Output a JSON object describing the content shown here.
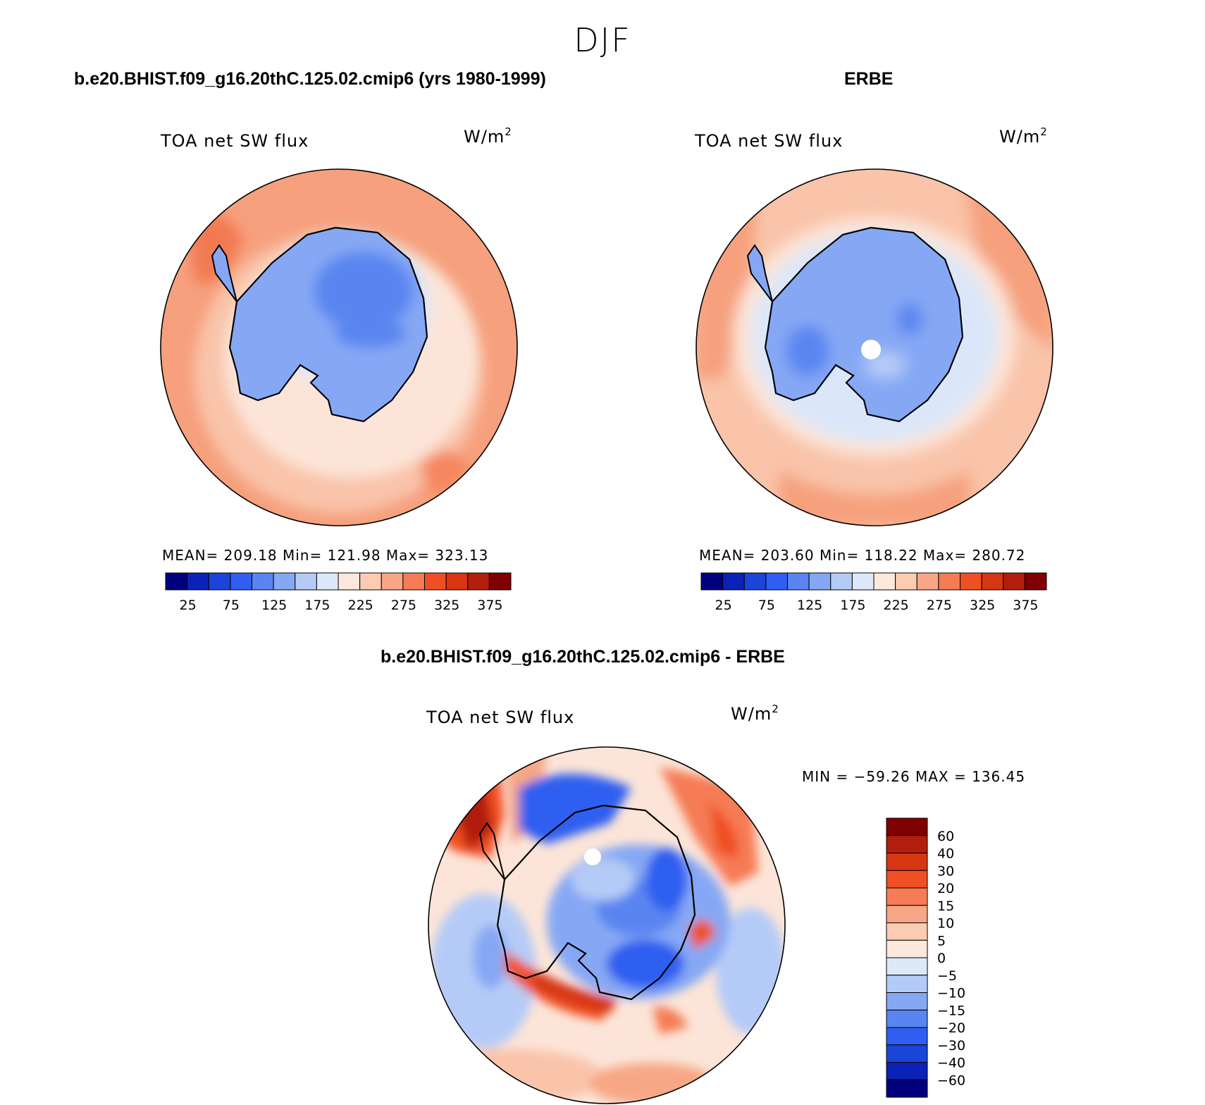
{
  "season": "DJF",
  "panels": [
    {
      "title": "b.e20.BHIST.f09_g16.20thC.125.02.cmip6 (yrs 1980-1999)",
      "variable": "TOA net SW flux",
      "unit": "W/m",
      "unit_power": "2",
      "stats": "MEAN= 209.18   Min= 121.98   Max= 323.13"
    },
    {
      "title": "ERBE",
      "variable": "TOA net SW flux",
      "unit": "W/m",
      "unit_power": "2",
      "stats": "MEAN= 203.60   Min= 118.22   Max= 280.72"
    }
  ],
  "difference": {
    "title": "b.e20.BHIST.f09_g16.20thC.125.02.cmip6 - ERBE",
    "variable": "TOA net SW flux",
    "unit": "W/m",
    "unit_power": "2",
    "minmax": "MIN = −59.26 MAX = 136.45"
  },
  "chart_data": [
    {
      "type": "heatmap",
      "projection": "south polar stereographic",
      "title": "b.e20.BHIST.f09_g16.20thC.125.02.cmip6 (yrs 1980-1999)",
      "variable": "TOA net SW flux",
      "unit": "W/m2",
      "mean": 209.18,
      "min": 121.98,
      "max": 323.13,
      "colorbar_ticks": [
        "25",
        "75",
        "125",
        "175",
        "225",
        "275",
        "325",
        "375"
      ],
      "colorbar_colors": [
        "#00007f",
        "#0a22b8",
        "#1a45d8",
        "#2f5ef0",
        "#5a85f0",
        "#86a8f4",
        "#b5cbf7",
        "#dde9f9",
        "#fce8dc",
        "#fbcbb2",
        "#f7a786",
        "#f57c55",
        "#f04f24",
        "#d63612",
        "#b21e0c",
        "#7f0000"
      ]
    },
    {
      "type": "heatmap",
      "projection": "south polar stereographic",
      "title": "ERBE",
      "variable": "TOA net SW flux",
      "unit": "W/m2",
      "mean": 203.6,
      "min": 118.22,
      "max": 280.72,
      "colorbar_ticks": [
        "25",
        "75",
        "125",
        "175",
        "225",
        "275",
        "325",
        "375"
      ],
      "colorbar_colors": [
        "#00007f",
        "#0a22b8",
        "#1a45d8",
        "#2f5ef0",
        "#5a85f0",
        "#86a8f4",
        "#b5cbf7",
        "#dde9f9",
        "#fce8dc",
        "#fbcbb2",
        "#f7a786",
        "#f57c55",
        "#f04f24",
        "#d63612",
        "#b21e0c",
        "#7f0000"
      ]
    },
    {
      "type": "heatmap",
      "projection": "south polar stereographic",
      "title": "b.e20.BHIST.f09_g16.20thC.125.02.cmip6 - ERBE",
      "variable": "TOA net SW flux",
      "unit": "W/m2",
      "min": -59.26,
      "max": 136.45,
      "colorbar_ticks": [
        "60",
        "40",
        "30",
        "20",
        "15",
        "10",
        "5",
        "0",
        "−5",
        "−10",
        "−15",
        "−20",
        "−30",
        "−40",
        "−60"
      ],
      "colorbar_colors": [
        "#7f0000",
        "#b21e0c",
        "#d63612",
        "#f04f24",
        "#f57c55",
        "#f7a786",
        "#fbcbb2",
        "#fce8dc",
        "#dde9f9",
        "#b5cbf7",
        "#86a8f4",
        "#5a85f0",
        "#2f5ef0",
        "#1a45d8",
        "#0a22b8",
        "#00007f"
      ]
    }
  ]
}
